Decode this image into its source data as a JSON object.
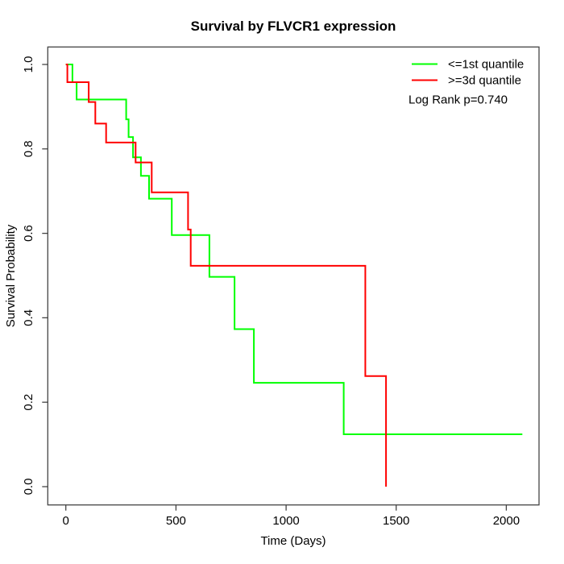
{
  "chart_data": {
    "type": "line",
    "subtype": "kaplan-meier-step",
    "title": "Survival by FLVCR1 expression",
    "xlabel": "Time (Days)",
    "ylabel": "Survival Probability",
    "xlim": [
      -83,
      2156
    ],
    "ylim": [
      -0.042,
      1.042
    ],
    "xticks": [
      "0",
      "500",
      "1000",
      "1500",
      "2000"
    ],
    "yticks": [
      "0.0",
      "0.2",
      "0.4",
      "0.6",
      "0.8",
      "1.0"
    ],
    "grid": false,
    "legend_position": "top-right",
    "annotation": "Log Rank p=0.740",
    "series": [
      {
        "name": "<=1st quantile",
        "color": "#00ff00",
        "points": [
          [
            0,
            1.0
          ],
          [
            30,
            0.958
          ],
          [
            49,
            0.917
          ],
          [
            274,
            0.87
          ],
          [
            285,
            0.828
          ],
          [
            305,
            0.78
          ],
          [
            341,
            0.736
          ],
          [
            378,
            0.682
          ],
          [
            481,
            0.596
          ],
          [
            652,
            0.497
          ],
          [
            766,
            0.373
          ],
          [
            854,
            0.246
          ],
          [
            1262,
            0.124
          ],
          [
            2073,
            0.124
          ]
        ]
      },
      {
        "name": ">=3d quantile",
        "color": "#ff0000",
        "points": [
          [
            0,
            1.0
          ],
          [
            7,
            0.958
          ],
          [
            104,
            0.911
          ],
          [
            134,
            0.86
          ],
          [
            183,
            0.815
          ],
          [
            317,
            0.768
          ],
          [
            390,
            0.697
          ],
          [
            555,
            0.609
          ],
          [
            567,
            0.523
          ],
          [
            1360,
            0.262
          ],
          [
            1454,
            0.0
          ]
        ]
      }
    ]
  }
}
